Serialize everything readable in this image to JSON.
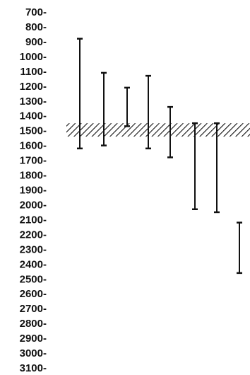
{
  "chart_data": {
    "type": "range",
    "title": "",
    "xlabel": "",
    "ylabel": "",
    "y_axis": {
      "inverted": true,
      "ylim": [
        700,
        3100
      ],
      "tick_labels": [
        "700-",
        "800-",
        "900-",
        "1000-",
        "1100-",
        "1200-",
        "1300-",
        "1400-",
        "1500-",
        "1600-",
        "1700-",
        "1800-",
        "1900-",
        "2000-",
        "2100-",
        "2200-",
        "2300-",
        "2400-",
        "2500-",
        "2600-",
        "2700-",
        "2800-",
        "2900-",
        "3000-",
        "3100-"
      ]
    },
    "grid": false,
    "legend": "none",
    "band": {
      "low": 1450,
      "high": 1540
    },
    "ranges": [
      {
        "low": 880,
        "high": 1620
      },
      {
        "low": 1110,
        "high": 1600
      },
      {
        "low": 1210,
        "high": 1470
      },
      {
        "low": 1130,
        "high": 1620
      },
      {
        "low": 1340,
        "high": 1680
      },
      {
        "low": 1450,
        "high": 2030
      },
      {
        "low": 1450,
        "high": 2050
      },
      {
        "low": 2120,
        "high": 2460
      }
    ],
    "colors": {
      "ink": "#111111",
      "background": "#ffffff"
    }
  }
}
